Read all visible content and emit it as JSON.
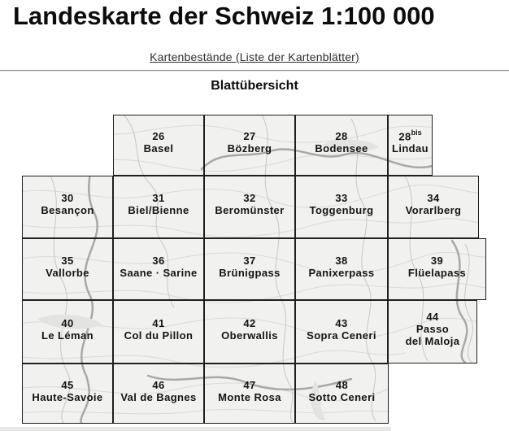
{
  "page": {
    "title": "Landeskarte der Schweiz 1:100 000",
    "link_label": "Kartenbestände (Liste der Kartenblätter)",
    "section_title": "Blattübersicht"
  },
  "map": {
    "tiles": [
      {
        "id": "26",
        "number": "26",
        "name": "Basel"
      },
      {
        "id": "27",
        "number": "27",
        "name": "Bözberg"
      },
      {
        "id": "28",
        "number": "28",
        "name": "Bodensee"
      },
      {
        "id": "28bis",
        "number": "28",
        "sup": "bis",
        "name": "Lindau"
      },
      {
        "id": "30",
        "number": "30",
        "name": "Besançon"
      },
      {
        "id": "31",
        "number": "31",
        "name": "Biel/Bienne"
      },
      {
        "id": "32",
        "number": "32",
        "name": "Beromünster"
      },
      {
        "id": "33",
        "number": "33",
        "name": "Toggenburg"
      },
      {
        "id": "34",
        "number": "34",
        "name": "Vorarlberg"
      },
      {
        "id": "35",
        "number": "35",
        "name": "Vallorbe"
      },
      {
        "id": "36",
        "number": "36",
        "name": "Saane · Sarine"
      },
      {
        "id": "37",
        "number": "37",
        "name": "Brünigpass"
      },
      {
        "id": "38",
        "number": "38",
        "name": "Panixerpass"
      },
      {
        "id": "39",
        "number": "39",
        "name": "Flüelapass"
      },
      {
        "id": "40",
        "number": "40",
        "name": "Le Léman"
      },
      {
        "id": "41",
        "number": "41",
        "name": "Col du Pillon"
      },
      {
        "id": "42",
        "number": "42",
        "name": "Oberwallis"
      },
      {
        "id": "43",
        "number": "43",
        "name": "Sopra Ceneri"
      },
      {
        "id": "44",
        "number": "44",
        "name": "Passo\ndel Maloja"
      },
      {
        "id": "45",
        "number": "45",
        "name": "Haute-Savoie"
      },
      {
        "id": "46",
        "number": "46",
        "name": "Val de Bagnes"
      },
      {
        "id": "47",
        "number": "47",
        "name": "Monte Rosa"
      },
      {
        "id": "48",
        "number": "48",
        "name": "Sotto Ceneri"
      }
    ]
  },
  "colors": {
    "tile_border": "#1f1f1f",
    "map_base": "#f1f1ef",
    "contour_light": "#dadad8",
    "contour_mid": "#c7c7c5",
    "river_dark": "#a8a8a6",
    "lake_fill": "#e3e3e1",
    "text": "#141414",
    "link_text": "#2e2e2e"
  }
}
